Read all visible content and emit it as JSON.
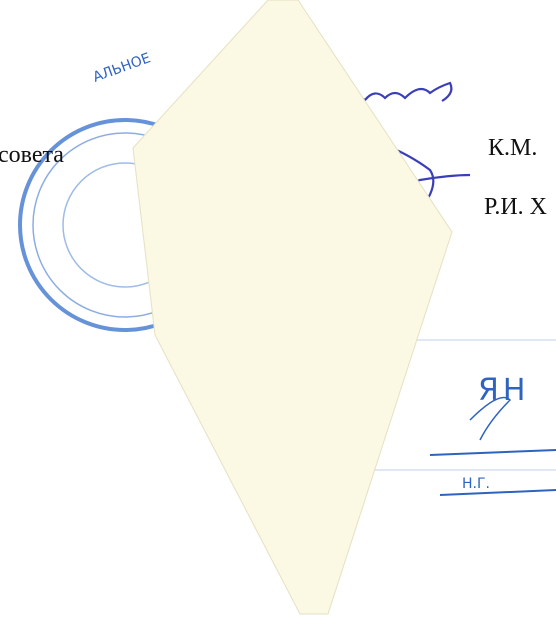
{
  "document": {
    "text_left": "совета",
    "signatures": [
      {
        "initials": "К.М."
      },
      {
        "initials": "Р.И. Х"
      }
    ],
    "stamp": {
      "round_text": "АЛЬНОЕ",
      "box_text": "ЯН",
      "box_initials": "Н.Г."
    }
  }
}
